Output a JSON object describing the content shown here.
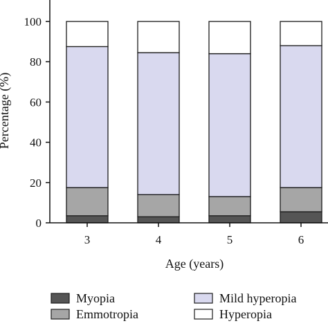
{
  "chart_data": {
    "type": "bar",
    "stacked": true,
    "xlabel": "Age (years)",
    "ylabel": "Percentage (%)",
    "categories": [
      "3",
      "4",
      "5",
      "6"
    ],
    "yticks": [
      0,
      20,
      40,
      60,
      80,
      100
    ],
    "ylim": [
      0,
      100
    ],
    "series": [
      {
        "name": "Myopia",
        "color": "#555555",
        "values": [
          3.5,
          3.0,
          3.5,
          5.5
        ]
      },
      {
        "name": "Emmotropia",
        "color": "#a6a6a6",
        "values": [
          14.0,
          11.0,
          9.5,
          12.0
        ]
      },
      {
        "name": "Mild hyperopia",
        "color": "#d9d9ef",
        "values": [
          70.0,
          70.5,
          71.0,
          70.5
        ]
      },
      {
        "name": "Hyperopia",
        "color": "#ffffff",
        "values": [
          12.5,
          15.5,
          16.0,
          12.0
        ]
      }
    ],
    "legend_position": "bottom"
  }
}
